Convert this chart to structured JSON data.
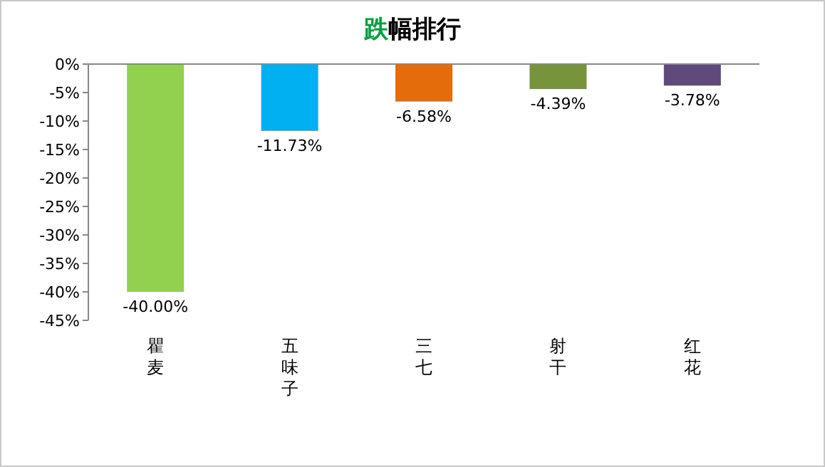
{
  "chart_data": {
    "type": "bar",
    "title": "跌幅排行",
    "categories": [
      "瞿麦",
      "五味子",
      "三七",
      "射干",
      "红花"
    ],
    "values": [
      -40.0,
      -11.73,
      -6.58,
      -4.39,
      -3.78
    ],
    "colors": [
      "#92d050",
      "#00b0f0",
      "#e46c0a",
      "#77933c",
      "#604a7b"
    ],
    "value_labels": [
      "-40.00%",
      "-11.73%",
      "-6.58%",
      "-4.39%",
      "-3.78%"
    ],
    "ylim": [
      -45,
      0
    ],
    "yticks": [
      {
        "value": 0,
        "label": "0%"
      },
      {
        "value": -5,
        "label": "-5%"
      },
      {
        "value": -10,
        "label": "-10%"
      },
      {
        "value": -15,
        "label": "-15%"
      },
      {
        "value": -20,
        "label": "-20%"
      },
      {
        "value": -25,
        "label": "-25%"
      },
      {
        "value": -30,
        "label": "-30%"
      },
      {
        "value": -35,
        "label": "-35%"
      },
      {
        "value": -40,
        "label": "-40%"
      },
      {
        "value": -45,
        "label": "-45%"
      }
    ],
    "grid": false
  }
}
